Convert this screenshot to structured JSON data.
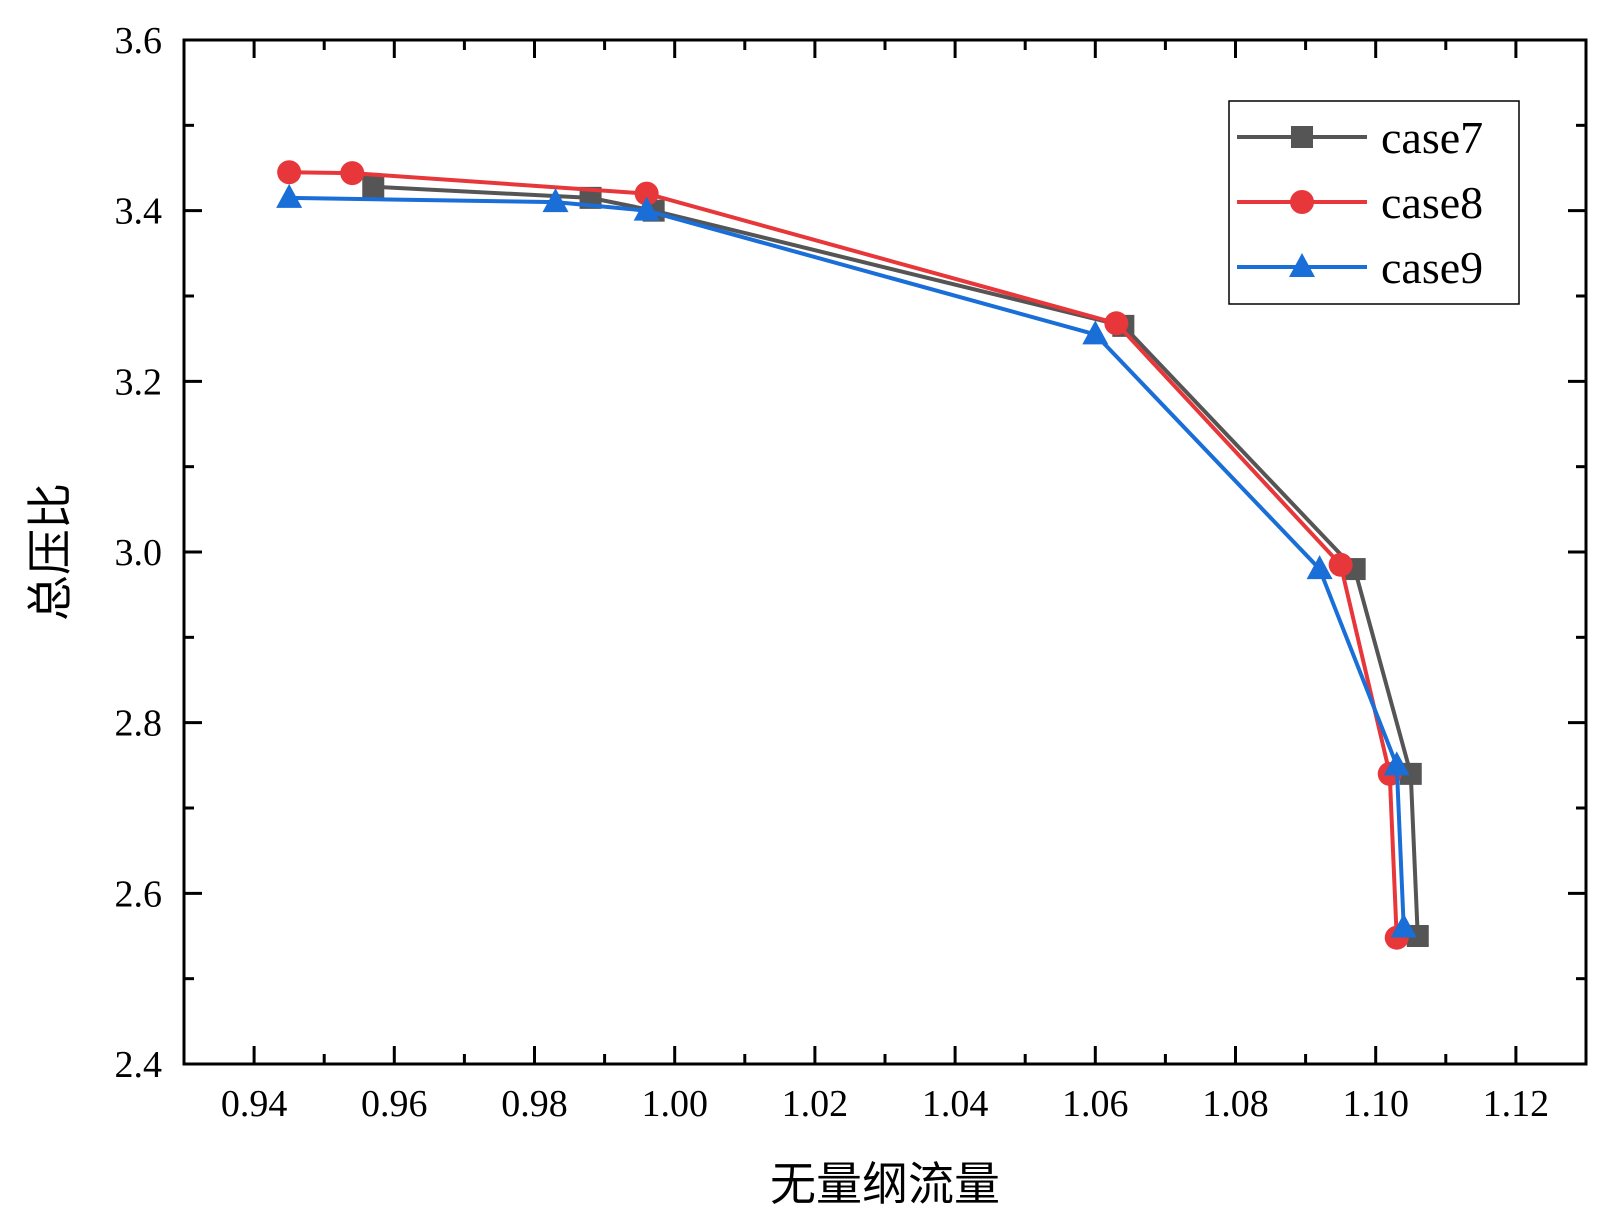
{
  "chart_data": {
    "type": "line",
    "title": "",
    "xlabel": "无量纲流量",
    "ylabel": "总压比",
    "xlim": [
      0.93,
      1.13
    ],
    "ylim": [
      2.4,
      3.6
    ],
    "xticks": [
      0.94,
      0.96,
      0.98,
      1.0,
      1.02,
      1.04,
      1.06,
      1.08,
      1.1,
      1.12
    ],
    "xtick_labels": [
      "0.94",
      "0.96",
      "0.98",
      "1.00",
      "1.02",
      "1.04",
      "1.06",
      "1.08",
      "1.10",
      "1.12"
    ],
    "yticks": [
      2.4,
      2.6,
      2.8,
      3.0,
      3.2,
      3.4,
      3.6
    ],
    "ytick_labels": [
      "2.4",
      "2.6",
      "2.8",
      "3.0",
      "3.2",
      "3.4",
      "3.6"
    ],
    "legend_position": "top-right",
    "grid": false,
    "series": [
      {
        "name": "case7",
        "color": "#555555",
        "marker": "square",
        "x": [
          0.957,
          0.988,
          0.997,
          1.064,
          1.097,
          1.105,
          1.106
        ],
        "y": [
          3.428,
          3.415,
          3.4,
          3.265,
          2.98,
          2.74,
          2.55
        ]
      },
      {
        "name": "case8",
        "color": "#e8373a",
        "marker": "circle",
        "x": [
          0.945,
          0.954,
          0.996,
          1.063,
          1.095,
          1.102,
          1.103
        ],
        "y": [
          3.445,
          3.444,
          3.42,
          3.268,
          2.985,
          2.74,
          2.548
        ]
      },
      {
        "name": "case9",
        "color": "#1a6ed8",
        "marker": "triangle",
        "x": [
          0.945,
          0.983,
          0.996,
          1.06,
          1.092,
          1.103,
          1.104
        ],
        "y": [
          3.415,
          3.41,
          3.4,
          3.255,
          2.98,
          2.75,
          2.56
        ]
      }
    ]
  }
}
